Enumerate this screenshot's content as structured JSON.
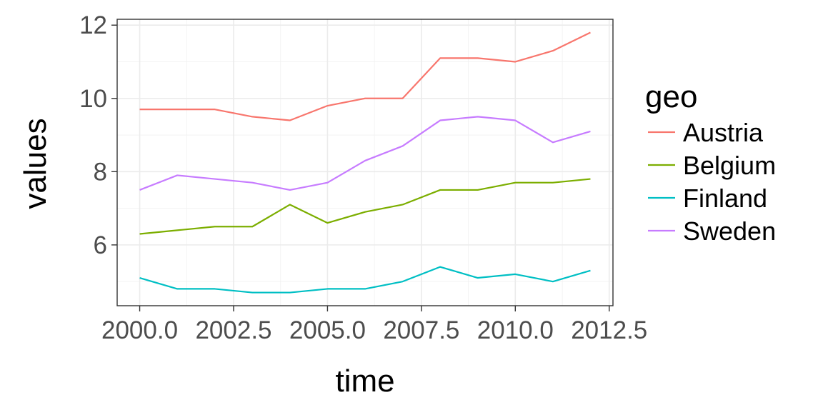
{
  "chart_data": {
    "type": "line",
    "title": "",
    "xlabel": "time",
    "ylabel": "values",
    "x": [
      2000,
      2001,
      2002,
      2003,
      2004,
      2005,
      2006,
      2007,
      2008,
      2009,
      2010,
      2011,
      2012
    ],
    "xlim": [
      1999.4,
      2012.6
    ],
    "ylim": [
      4.34,
      12.16
    ],
    "x_ticks": [
      2000.0,
      2002.5,
      2005.0,
      2007.5,
      2010.0,
      2012.5
    ],
    "x_tick_labels": [
      "2000.0",
      "2002.5",
      "2005.0",
      "2007.5",
      "2010.0",
      "2012.5"
    ],
    "y_ticks": [
      6,
      8,
      10,
      12
    ],
    "y_tick_labels": [
      "6",
      "8",
      "10",
      "12"
    ],
    "grid": true,
    "legend": {
      "title": "geo",
      "position": "right"
    },
    "series": [
      {
        "name": "Austria",
        "color": "#F8766D",
        "values": [
          9.7,
          9.7,
          9.7,
          9.5,
          9.4,
          9.8,
          10.0,
          10.0,
          11.1,
          11.1,
          11.0,
          11.3,
          11.8
        ]
      },
      {
        "name": "Belgium",
        "color": "#7CAE00",
        "values": [
          6.3,
          6.4,
          6.5,
          6.5,
          7.1,
          6.6,
          6.9,
          7.1,
          7.5,
          7.5,
          7.7,
          7.7,
          7.8
        ]
      },
      {
        "name": "Finland",
        "color": "#00BFC4",
        "values": [
          5.1,
          4.8,
          4.8,
          4.7,
          4.7,
          4.8,
          4.8,
          5.0,
          5.4,
          5.1,
          5.2,
          5.0,
          5.3
        ]
      },
      {
        "name": "Sweden",
        "color": "#C77CFF",
        "values": [
          7.5,
          7.9,
          7.8,
          7.7,
          7.5,
          7.7,
          8.3,
          8.7,
          9.4,
          9.5,
          9.4,
          8.8,
          9.1
        ]
      }
    ]
  }
}
